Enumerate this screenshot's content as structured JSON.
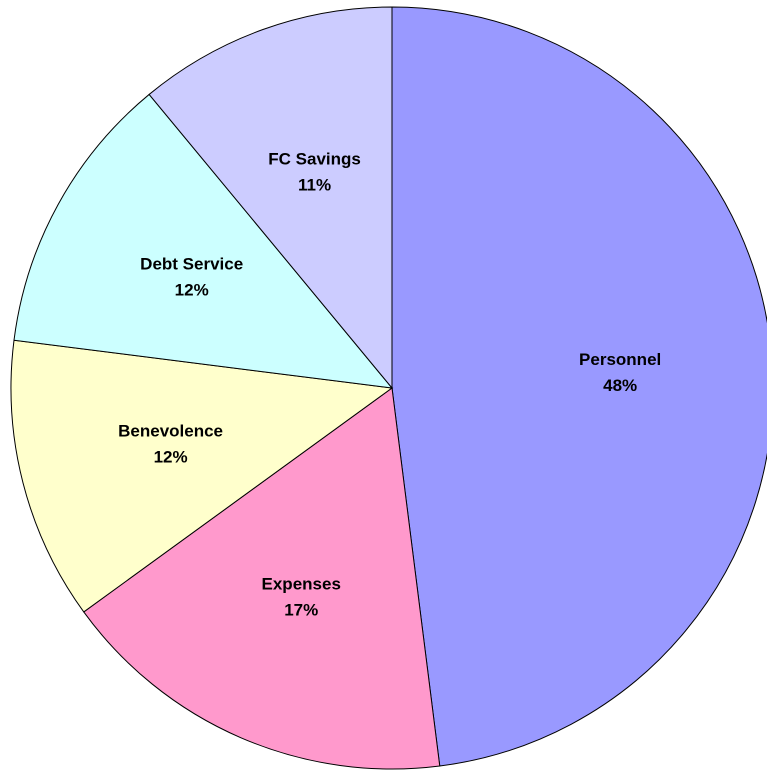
{
  "chart_data": {
    "type": "pie",
    "categories": [
      "Personnel",
      "Expenses",
      "Benevolence",
      "Debt Service",
      "FC Savings"
    ],
    "values": [
      48,
      17,
      12,
      12,
      11
    ],
    "value_labels": [
      "48%",
      "17%",
      "12%",
      "12%",
      "11%"
    ],
    "colors": [
      "#9999ff",
      "#ff99cc",
      "#ffffcc",
      "#ccffff",
      "#ccccff"
    ]
  }
}
